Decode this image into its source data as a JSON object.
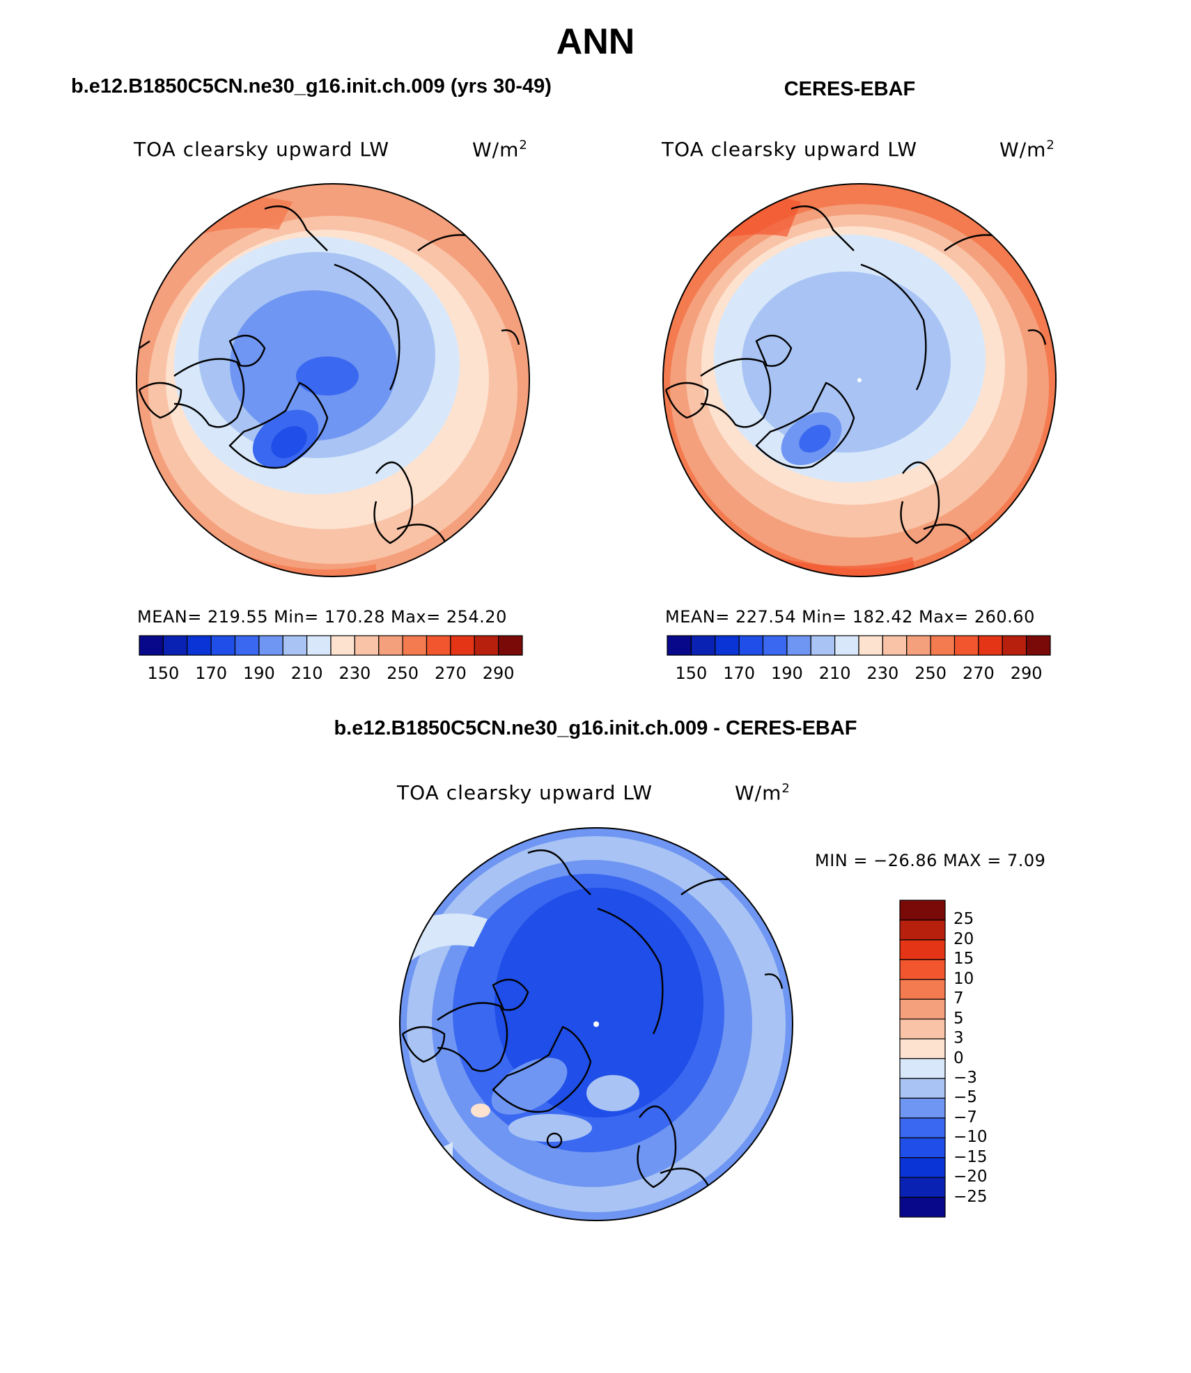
{
  "page": {
    "title": "ANN",
    "left_panel_title": "b.e12.B1850C5CN.ne30_g16.init.ch.009 (yrs 30-49)",
    "right_panel_title": "CERES-EBAF",
    "bottom_panel_title": "b.e12.B1850C5CN.ne30_g16.init.ch.009 - CERES-EBAF"
  },
  "panels": {
    "model": {
      "variable": "TOA clearsky upward LW",
      "units": "W/m",
      "units_exp": "2",
      "stats": "MEAN= 219.55   Min= 170.28   Max= 254.20"
    },
    "obs": {
      "variable": "TOA clearsky upward LW",
      "units": "W/m",
      "units_exp": "2",
      "stats": "MEAN= 227.54   Min= 182.42   Max= 260.60"
    },
    "diff": {
      "variable": "TOA clearsky upward LW",
      "units": "W/m",
      "units_exp": "2",
      "stats": "MIN = −26.86  MAX =    7.09"
    }
  },
  "colorbars": {
    "abs": {
      "colors": [
        "#08088a",
        "#0a22b4",
        "#0b34d6",
        "#1f4ee8",
        "#3a68f0",
        "#6f96f2",
        "#a9c4f4",
        "#d8e8fa",
        "#fde2d0",
        "#f9c3a7",
        "#f5a07c",
        "#f47b50",
        "#f2562e",
        "#e43516",
        "#b8200e",
        "#7a0a08"
      ],
      "ticks": [
        "150",
        "170",
        "190",
        "210",
        "230",
        "250",
        "270",
        "290"
      ]
    },
    "diff": {
      "colors": [
        "#08088a",
        "#0a22b4",
        "#0b34d6",
        "#1f4ee8",
        "#3a68f0",
        "#6f96f2",
        "#a9c4f4",
        "#d8e8fa",
        "#fde2d0",
        "#f9c3a7",
        "#f5a07c",
        "#f47b50",
        "#f2562e",
        "#e43516",
        "#b8200e",
        "#7a0a08"
      ],
      "labels": [
        "25",
        "20",
        "15",
        "10",
        "7",
        "5",
        "3",
        "0",
        "−3",
        "−5",
        "−7",
        "−10",
        "−15",
        "−20",
        "−25"
      ]
    }
  }
}
